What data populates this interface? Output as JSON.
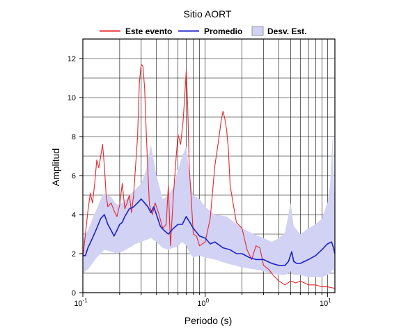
{
  "chart_data": {
    "type": "line",
    "title": "Sitio AORT",
    "xlabel": "Periodo (s)",
    "ylabel": "Amplitud",
    "x_scale": "log",
    "xlim": [
      0.1,
      11.5
    ],
    "ylim": [
      0,
      13
    ],
    "grid": true,
    "legend_position": "top",
    "y_ticks": [
      "0",
      "2",
      "4",
      "6",
      "8",
      "10",
      "12"
    ],
    "x_ticks": [
      {
        "base": "10",
        "exp": "-1"
      },
      {
        "base": "10",
        "exp": "0"
      },
      {
        "base": "10",
        "exp": "1"
      }
    ],
    "legend": [
      {
        "label": "Este evento",
        "kind": "line",
        "color": "#e8262a"
      },
      {
        "label": "Promedio",
        "kind": "line",
        "color": "#1a22c8"
      },
      {
        "label": "Desv. Est.",
        "kind": "band",
        "color": "#d2d2f5"
      }
    ],
    "band": {
      "name": "Desv. Est.",
      "color": "#d2d2f5",
      "x": [
        0.1,
        0.11,
        0.12,
        0.13,
        0.14,
        0.15,
        0.17,
        0.19,
        0.21,
        0.24,
        0.27,
        0.3,
        0.33,
        0.36,
        0.4,
        0.45,
        0.5,
        0.55,
        0.6,
        0.65,
        0.7,
        0.75,
        0.8,
        0.9,
        1.0,
        1.2,
        1.5,
        2.0,
        2.5,
        3.0,
        3.5,
        4.0,
        4.5,
        5.0,
        5.3,
        6.0,
        7.0,
        8.0,
        9.0,
        10.0,
        10.5,
        11.0,
        11.5
      ],
      "upper": [
        2.8,
        3.2,
        3.8,
        4.3,
        4.8,
        5.1,
        4.9,
        4.5,
        4.6,
        5.0,
        5.3,
        5.6,
        6.3,
        7.6,
        6.0,
        4.8,
        5.0,
        5.4,
        6.3,
        7.0,
        7.5,
        5.8,
        5.0,
        4.8,
        4.4,
        4.0,
        3.9,
        3.3,
        3.0,
        2.8,
        2.6,
        2.8,
        3.1,
        4.6,
        3.4,
        3.0,
        3.3,
        3.5,
        3.8,
        4.6,
        5.5,
        8.0,
        4.2
      ],
      "lower": [
        1.0,
        1.2,
        1.5,
        1.8,
        2.0,
        2.2,
        2.1,
        2.0,
        2.1,
        2.3,
        2.5,
        2.6,
        2.7,
        2.8,
        2.6,
        2.3,
        2.2,
        2.3,
        2.4,
        2.6,
        2.4,
        2.0,
        1.8,
        1.9,
        1.8,
        1.7,
        1.5,
        1.3,
        1.2,
        1.1,
        1.0,
        0.9,
        0.9,
        1.1,
        0.9,
        0.9,
        0.8,
        0.8,
        0.8,
        0.9,
        1.0,
        1.2,
        1.0
      ]
    },
    "series": [
      {
        "name": "Este evento",
        "color": "#e8262a",
        "x": [
          0.1,
          0.105,
          0.11,
          0.115,
          0.12,
          0.125,
          0.13,
          0.135,
          0.14,
          0.145,
          0.15,
          0.155,
          0.16,
          0.17,
          0.18,
          0.19,
          0.2,
          0.21,
          0.22,
          0.23,
          0.24,
          0.25,
          0.26,
          0.28,
          0.29,
          0.3,
          0.31,
          0.32,
          0.33,
          0.34,
          0.35,
          0.37,
          0.39,
          0.42,
          0.45,
          0.48,
          0.5,
          0.52,
          0.55,
          0.58,
          0.6,
          0.63,
          0.66,
          0.68,
          0.7,
          0.72,
          0.74,
          0.77,
          0.8,
          0.85,
          0.9,
          1.0,
          1.1,
          1.2,
          1.3,
          1.35,
          1.4,
          1.45,
          1.5,
          1.55,
          1.6,
          1.7,
          1.8,
          2.0,
          2.2,
          2.4,
          2.6,
          2.8,
          3.0,
          3.3,
          3.6,
          4.0,
          4.5,
          5.0,
          5.5,
          6.0,
          7.0,
          8.0,
          9.0,
          10.0,
          11.0,
          11.5
        ],
        "y": [
          1.8,
          3.0,
          4.2,
          5.1,
          4.6,
          5.6,
          6.8,
          6.4,
          7.0,
          7.6,
          6.5,
          5.0,
          4.4,
          4.6,
          4.2,
          3.9,
          4.5,
          5.6,
          4.3,
          4.6,
          5.0,
          4.1,
          5.0,
          8.0,
          10.8,
          11.7,
          11.6,
          10.5,
          8.2,
          6.2,
          4.5,
          4.0,
          4.6,
          4.0,
          3.3,
          3.5,
          5.5,
          2.4,
          5.0,
          7.0,
          8.1,
          7.6,
          8.8,
          10.0,
          11.4,
          9.6,
          6.5,
          4.8,
          3.0,
          2.9,
          2.4,
          2.6,
          3.8,
          6.5,
          8.0,
          8.8,
          9.3,
          8.9,
          8.3,
          7.3,
          5.5,
          4.5,
          3.6,
          3.3,
          2.2,
          1.7,
          2.4,
          2.3,
          1.4,
          1.2,
          0.9,
          0.6,
          0.4,
          0.6,
          0.5,
          0.6,
          0.4,
          0.4,
          0.3,
          0.3,
          0.25,
          0.2
        ]
      },
      {
        "name": "Promedio",
        "color": "#1a22c8",
        "x": [
          0.1,
          0.105,
          0.11,
          0.12,
          0.13,
          0.14,
          0.15,
          0.16,
          0.17,
          0.18,
          0.19,
          0.2,
          0.21,
          0.22,
          0.24,
          0.26,
          0.28,
          0.3,
          0.32,
          0.34,
          0.36,
          0.38,
          0.4,
          0.43,
          0.46,
          0.5,
          0.55,
          0.6,
          0.65,
          0.7,
          0.75,
          0.8,
          0.9,
          1.0,
          1.1,
          1.2,
          1.4,
          1.6,
          1.8,
          2.0,
          2.3,
          2.6,
          3.0,
          3.5,
          4.0,
          4.5,
          4.8,
          5.1,
          5.3,
          5.6,
          6.0,
          7.0,
          8.0,
          9.0,
          10.0,
          10.8,
          11.2,
          11.5
        ],
        "y": [
          1.9,
          1.9,
          2.3,
          2.8,
          3.3,
          3.8,
          4.0,
          3.5,
          3.2,
          2.9,
          3.2,
          3.5,
          3.6,
          3.9,
          4.3,
          4.4,
          4.6,
          4.8,
          4.6,
          4.4,
          4.1,
          4.4,
          4.0,
          3.4,
          3.2,
          3.0,
          3.3,
          3.5,
          3.5,
          3.9,
          3.6,
          3.3,
          2.9,
          2.8,
          2.5,
          2.6,
          2.3,
          2.2,
          2.0,
          2.0,
          1.8,
          1.7,
          1.7,
          1.5,
          1.4,
          1.4,
          1.6,
          2.1,
          1.6,
          1.5,
          1.5,
          1.7,
          1.9,
          2.2,
          2.5,
          2.6,
          2.3,
          2.0
        ]
      }
    ]
  }
}
